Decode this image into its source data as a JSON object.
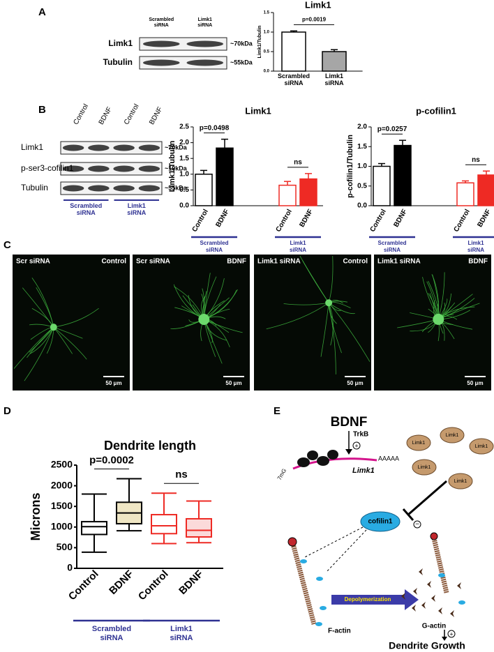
{
  "panel_labels": [
    "A",
    "B",
    "C",
    "D",
    "E"
  ],
  "blot_a": {
    "lanes": [
      "Scrambled siRNA",
      "Limk1 siRNA"
    ],
    "rows": [
      "Limk1",
      "Tubulin"
    ],
    "sizes": [
      "~70kDa",
      "~55kDa"
    ]
  },
  "blot_b": {
    "lanes": [
      "Control",
      "BDNF",
      "Control",
      "BDNF"
    ],
    "rows": [
      "Limk1",
      "p-ser3-cofilin1",
      "Tubulin"
    ],
    "sizes": [
      "~70kDa",
      "~19kDa",
      "~55kDa"
    ],
    "groups": [
      "Scrambled siRNA",
      "Limk1 siRNA"
    ]
  },
  "chart_data": [
    {
      "type": "bar",
      "title": "Limk1",
      "y_label": "Limk1/Tubulin",
      "categories": [
        "Scrambled siRNA",
        "Limk1 siRNA"
      ],
      "values": [
        1.0,
        0.5
      ],
      "errors": [
        0.03,
        0.05
      ],
      "colors": [
        "#ffffff",
        "#a6a6a6"
      ],
      "edge_colors": [
        "#000000",
        "#000000"
      ],
      "ylim": [
        0,
        1.5
      ],
      "yticks": [
        {
          "value": 0,
          "label": "0.0"
        },
        {
          "value": 0.5,
          "label": "0.5"
        },
        {
          "value": 1.0,
          "label": "1.0"
        },
        {
          "value": 1.5,
          "label": "1.5"
        }
      ],
      "annotations": [
        "p=0.0019"
      ]
    },
    {
      "type": "bar",
      "title": "Limk1",
      "y_label": "Limk1/Tubulin",
      "categories": [
        "Control",
        "BDNF",
        "Control",
        "BDNF"
      ],
      "groups": [
        "Scrambled siRNA",
        "Limk1 siRNA"
      ],
      "values": [
        1.0,
        1.83,
        0.65,
        0.85
      ],
      "errors": [
        0.12,
        0.28,
        0.12,
        0.17
      ],
      "colors": [
        "#ffffff",
        "#000000",
        "#ffffff",
        "#ee2a24"
      ],
      "edge_colors": [
        "#000000",
        "#000000",
        "#ee2a24",
        "#ee2a24"
      ],
      "ylim": [
        0,
        2.5
      ],
      "yticks": [
        {
          "value": 0,
          "label": "0.0"
        },
        {
          "value": 0.5,
          "label": "0.5"
        },
        {
          "value": 1.0,
          "label": "1.0"
        },
        {
          "value": 1.5,
          "label": "1.5"
        },
        {
          "value": 2.0,
          "label": "2.0"
        },
        {
          "value": 2.5,
          "label": "2.5"
        }
      ],
      "annotations": [
        "p=0.0498",
        "ns"
      ]
    },
    {
      "type": "bar",
      "title": "p-cofilin1",
      "y_label": "p-cofilin1/Tubulin",
      "categories": [
        "Control",
        "BDNF",
        "Control",
        "BDNF"
      ],
      "groups": [
        "Scrambled siRNA",
        "Limk1 siRNA"
      ],
      "values": [
        1.0,
        1.53,
        0.58,
        0.78
      ],
      "errors": [
        0.07,
        0.13,
        0.05,
        0.1
      ],
      "colors": [
        "#ffffff",
        "#000000",
        "#ffffff",
        "#ee2a24"
      ],
      "edge_colors": [
        "#000000",
        "#000000",
        "#ee2a24",
        "#ee2a24"
      ],
      "ylim": [
        0,
        2.0
      ],
      "yticks": [
        {
          "value": 0,
          "label": "0.0"
        },
        {
          "value": 0.5,
          "label": "0.5"
        },
        {
          "value": 1.0,
          "label": "1.0"
        },
        {
          "value": 1.5,
          "label": "1.5"
        },
        {
          "value": 2.0,
          "label": "2.0"
        }
      ],
      "annotations": [
        "p=0.0257",
        "ns"
      ]
    },
    {
      "type": "box",
      "title": "Dendrite length",
      "y_label": "Microns",
      "categories": [
        "Control",
        "BDNF",
        "Control",
        "BDNF"
      ],
      "groups": [
        "Scrambled siRNA",
        "Limk1 siRNA"
      ],
      "min": [
        390,
        910,
        600,
        620
      ],
      "q1": [
        820,
        1080,
        840,
        760
      ],
      "median": [
        1010,
        1340,
        1030,
        920
      ],
      "q3": [
        1130,
        1600,
        1300,
        1200
      ],
      "max": [
        1800,
        2170,
        1820,
        1630
      ],
      "colors": [
        "#ffffff",
        "#efe6c4",
        "#ffffff",
        "#fbdada"
      ],
      "edge_colors": [
        "#000000",
        "#000000",
        "#ee2a24",
        "#ee2a24"
      ],
      "ylim": [
        0,
        2500
      ],
      "yticks": [
        0,
        500,
        1000,
        1500,
        2000,
        2500
      ],
      "annotations": [
        "p=0.0002",
        "ns"
      ]
    }
  ],
  "micrographs": [
    {
      "condition": "Scr siRNA",
      "treatment": "Control",
      "scale": "50 μm"
    },
    {
      "condition": "Scr siRNA",
      "treatment": "BDNF",
      "scale": "50 μm"
    },
    {
      "condition": "Limk1 siRNA",
      "treatment": "Control",
      "scale": "50 μm"
    },
    {
      "condition": "Limk1 siRNA",
      "treatment": "BDNF",
      "scale": "50 μm"
    }
  ],
  "diagram": {
    "ligand": "BDNF",
    "receptor": "TrkB",
    "activation": "+",
    "poly_a": "AAAAA",
    "mrna": "Limk1",
    "cap": "7mG",
    "kinase": [
      "Limk1",
      "Limk1",
      "Limk1",
      "Limk1",
      "Limk1"
    ],
    "inhibition": "−",
    "target": "cofilin1",
    "process": "Depolymerization",
    "filament": "F-actin",
    "monomer": "G-actin",
    "growth_sign": "+",
    "outcome": "Dendrite Growth"
  }
}
